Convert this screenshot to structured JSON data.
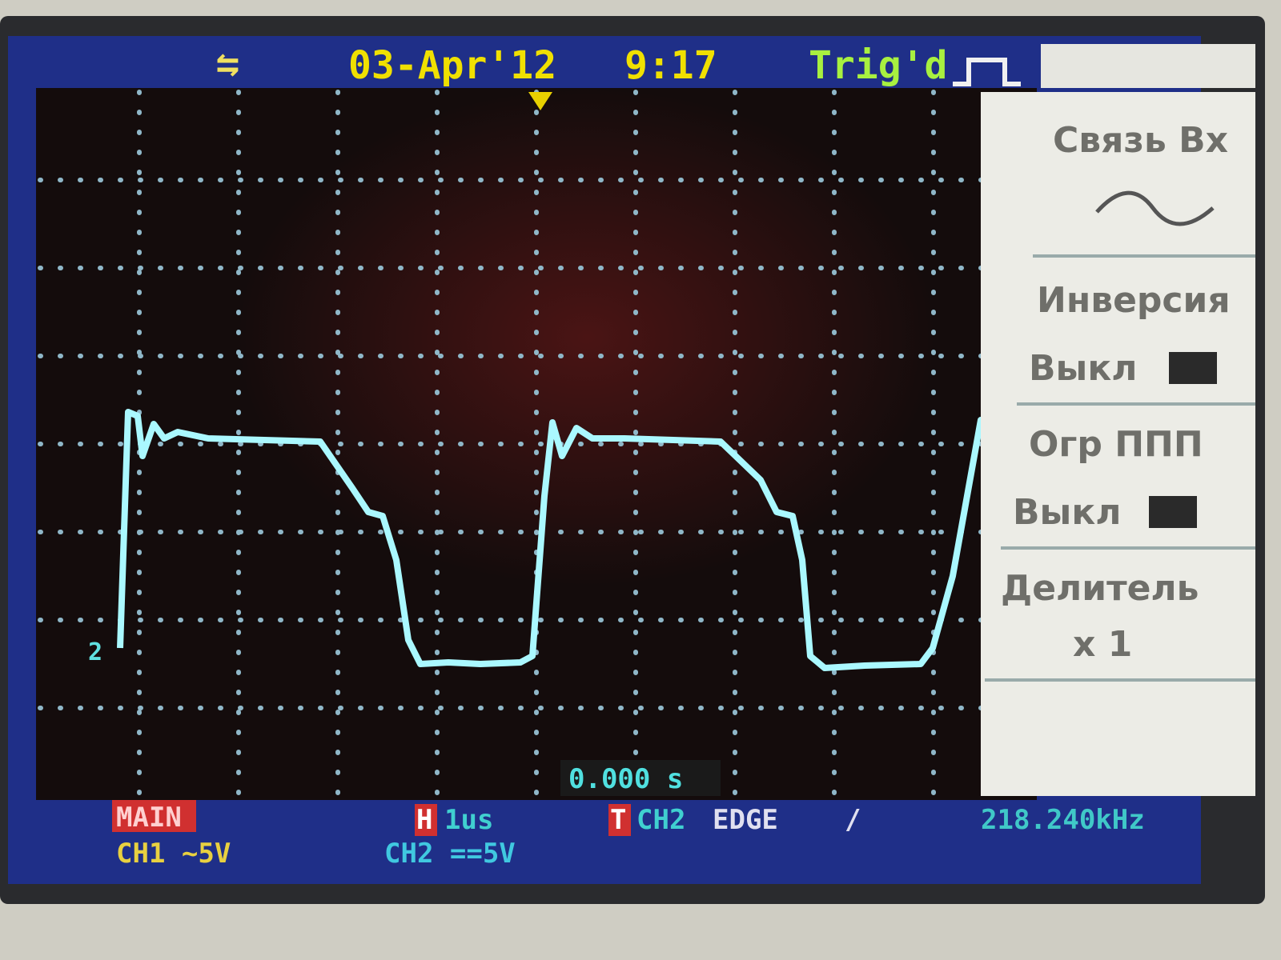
{
  "header": {
    "date": "03-Apr'12",
    "time": "9:17",
    "trigger_status": "Trig'd"
  },
  "menu": {
    "coupling_label": "Связь Вх",
    "inversion_label": "Инверсия",
    "inversion_value": "Выкл",
    "bandwidth_label": "Огр ППП",
    "bandwidth_value": "Выкл",
    "probe_label": "Делитель",
    "probe_value": "x 1"
  },
  "screen": {
    "trigger_offset": "0.000 s",
    "channel_marker": "2"
  },
  "status": {
    "mode": "MAIN",
    "timebase_key": "H",
    "timebase": "1us",
    "trigger_key": "T",
    "trigger_source": "CH2",
    "trigger_type": "EDGE",
    "trigger_slope": "/",
    "frequency": "218.240kHz",
    "ch1_scale": "CH1 ~5V",
    "ch2_scale": "CH2 ==5V"
  }
}
